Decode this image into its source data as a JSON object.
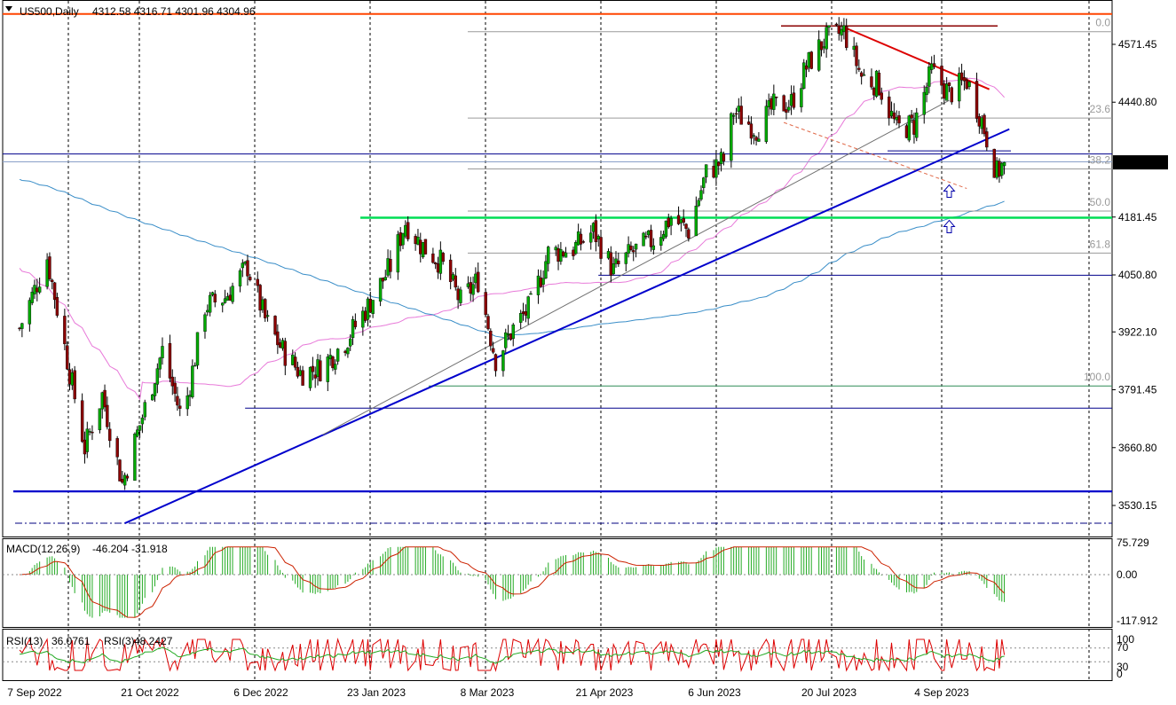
{
  "header": {
    "symbol": "US500,Daily",
    "ohlc": "4312.58 4316.71 4301.96 4304.96"
  },
  "price_badge": "4304.96",
  "indicators": {
    "macd": {
      "label": "MACD(12,26,9)",
      "values": "-46.204 -31.918",
      "ticks": [
        "75.729",
        "0.00",
        "-117.912"
      ]
    },
    "rsi": {
      "label": "RSI(13)",
      "value13": "36.0761",
      "label3": "RSI(3)",
      "value3": "48.2427",
      "ticks": [
        "100",
        "70",
        "30",
        "0"
      ]
    }
  },
  "fibonacci_labels": [
    "0.0",
    "23.6",
    "38.2",
    "50.0",
    "61.8",
    "100.0"
  ],
  "x_axis_labels": [
    "7 Sep 2022",
    "21 Oct 2022",
    "6 Dec 2022",
    "23 Jan 2023",
    "8 Mar 2023",
    "21 Apr 2023",
    "6 Jun 2023",
    "20 Jul 2023",
    "4 Sep 2023"
  ],
  "chart_data": {
    "type": "candlestick",
    "symbol": "US500",
    "timeframe": "Daily",
    "y_ticks": [
      4571.45,
      4440.8,
      4181.45,
      4050.8,
      3922.1,
      3791.45,
      3660.8,
      3530.15
    ],
    "ylim": [
      3490,
      4655
    ],
    "last_price": 4304.96,
    "levels": {
      "top_resistance": 4640,
      "current_zone_upper": 4324,
      "current_zone_lower": 4306,
      "breakout_green": 4180,
      "support_mid": 4050,
      "support_low": 3750,
      "support_bottom": 3562,
      "dashdot_bottom": 3490
    },
    "fibonacci": [
      {
        "label": "0.0",
        "price": 4600
      },
      {
        "label": "23.6",
        "price": 4405
      },
      {
        "label": "38.2",
        "price": 4290
      },
      {
        "label": "50.0",
        "price": 4195
      },
      {
        "label": "61.8",
        "price": 4100
      },
      {
        "label": "100.0",
        "price": 3800
      }
    ],
    "trendlines": [
      {
        "name": "main uptrend",
        "color": "#0000cc",
        "from": {
          "date": "2022-10-13",
          "price": 3490
        },
        "to": {
          "date": "2023-10-01",
          "price": 4380
        }
      },
      {
        "name": "descending resistance",
        "color": "#dd0000",
        "from": {
          "date": "2023-07-27",
          "price": 4610
        },
        "to": {
          "date": "2023-09-23",
          "price": 4470
        }
      }
    ],
    "markers": [
      {
        "type": "arrow-up",
        "date": "2023-09-07",
        "price": 4240
      },
      {
        "type": "arrow-up",
        "date": "2023-09-07",
        "price": 4160
      }
    ],
    "closes": [
      {
        "date": "2022-09-01",
        "close": 3930
      },
      {
        "date": "2022-09-12",
        "close": 4090
      },
      {
        "date": "2022-09-20",
        "close": 3860
      },
      {
        "date": "2022-09-27",
        "close": 3660
      },
      {
        "date": "2022-10-04",
        "close": 3780
      },
      {
        "date": "2022-10-12",
        "close": 3580
      },
      {
        "date": "2022-10-21",
        "close": 3750
      },
      {
        "date": "2022-10-28",
        "close": 3880
      },
      {
        "date": "2022-11-05",
        "close": 3720
      },
      {
        "date": "2022-11-14",
        "close": 3980
      },
      {
        "date": "2022-11-22",
        "close": 4000
      },
      {
        "date": "2022-12-01",
        "close": 4070
      },
      {
        "date": "2022-12-08",
        "close": 3950
      },
      {
        "date": "2022-12-15",
        "close": 3880
      },
      {
        "date": "2022-12-22",
        "close": 3830
      },
      {
        "date": "2022-12-30",
        "close": 3840
      },
      {
        "date": "2023-01-09",
        "close": 3900
      },
      {
        "date": "2023-01-18",
        "close": 3980
      },
      {
        "date": "2023-01-27",
        "close": 4070
      },
      {
        "date": "2023-02-02",
        "close": 4170
      },
      {
        "date": "2023-02-08",
        "close": 4120
      },
      {
        "date": "2023-02-16",
        "close": 4080
      },
      {
        "date": "2023-02-24",
        "close": 3990
      },
      {
        "date": "2023-03-03",
        "close": 4040
      },
      {
        "date": "2023-03-10",
        "close": 3860
      },
      {
        "date": "2023-03-17",
        "close": 3930
      },
      {
        "date": "2023-03-24",
        "close": 3980
      },
      {
        "date": "2023-03-31",
        "close": 4100
      },
      {
        "date": "2023-04-10",
        "close": 4110
      },
      {
        "date": "2023-04-18",
        "close": 4150
      },
      {
        "date": "2023-04-26",
        "close": 4060
      },
      {
        "date": "2023-05-03",
        "close": 4100
      },
      {
        "date": "2023-05-12",
        "close": 4130
      },
      {
        "date": "2023-05-19",
        "close": 4180
      },
      {
        "date": "2023-05-26",
        "close": 4150
      },
      {
        "date": "2023-06-02",
        "close": 4280
      },
      {
        "date": "2023-06-09",
        "close": 4310
      },
      {
        "date": "2023-06-13",
        "close": 4420
      },
      {
        "date": "2023-06-22",
        "close": 4380
      },
      {
        "date": "2023-06-29",
        "close": 4430
      },
      {
        "date": "2023-07-06",
        "close": 4440
      },
      {
        "date": "2023-07-12",
        "close": 4520
      },
      {
        "date": "2023-07-19",
        "close": 4580
      },
      {
        "date": "2023-07-27",
        "close": 4600
      },
      {
        "date": "2023-08-03",
        "close": 4500
      },
      {
        "date": "2023-08-10",
        "close": 4480
      },
      {
        "date": "2023-08-17",
        "close": 4380
      },
      {
        "date": "2023-08-24",
        "close": 4390
      },
      {
        "date": "2023-08-31",
        "close": 4510
      },
      {
        "date": "2023-09-07",
        "close": 4460
      },
      {
        "date": "2023-09-14",
        "close": 4490
      },
      {
        "date": "2023-09-20",
        "close": 4400
      },
      {
        "date": "2023-09-26",
        "close": 4280
      },
      {
        "date": "2023-09-29",
        "close": 4305
      }
    ]
  }
}
